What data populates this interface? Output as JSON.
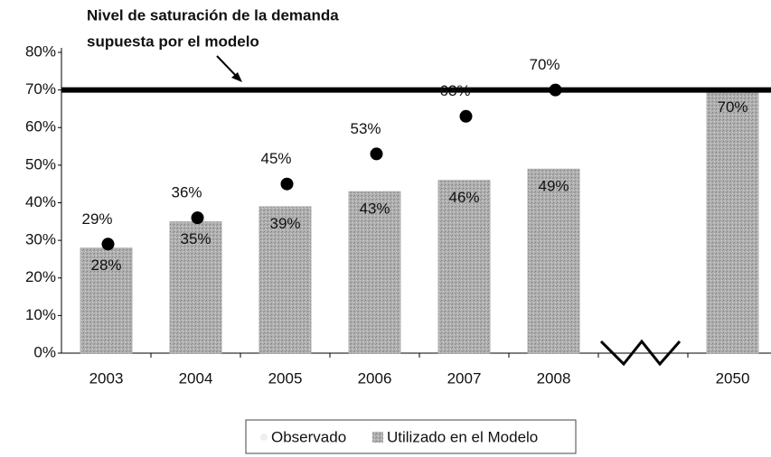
{
  "chart_data": {
    "type": "bar",
    "annotation": [
      "Nivel de saturación de la demanda",
      "supuesta por el modelo"
    ],
    "saturation_line": 70,
    "categories": [
      "2003",
      "2004",
      "2005",
      "2006",
      "2007",
      "2008",
      null,
      "2050"
    ],
    "series": [
      {
        "name": "Utilizado en el Modelo",
        "color": "#a9a9a9",
        "values": [
          28,
          35,
          39,
          43,
          46,
          49,
          null,
          70
        ],
        "value_labels": [
          "28%",
          "35%",
          "39%",
          "43%",
          "46%",
          "49%",
          null,
          "70%"
        ]
      },
      {
        "name": "Observado",
        "color": "#000000",
        "values": [
          29,
          36,
          45,
          53,
          63,
          70,
          null,
          null
        ],
        "value_labels": [
          "29%",
          "36%",
          "45%",
          "53%",
          "63%",
          "70%",
          null,
          null
        ]
      }
    ],
    "ylim": [
      0,
      80
    ],
    "yticks": [
      {
        "value": 0,
        "label": "0%"
      },
      {
        "value": 10,
        "label": "10%"
      },
      {
        "value": 20,
        "label": "20%"
      },
      {
        "value": 30,
        "label": "30%"
      },
      {
        "value": 40,
        "label": "40%"
      },
      {
        "value": 50,
        "label": "50%"
      },
      {
        "value": 60,
        "label": "60%"
      },
      {
        "value": 70,
        "label": "70%"
      },
      {
        "value": 80,
        "label": "80%"
      }
    ]
  }
}
